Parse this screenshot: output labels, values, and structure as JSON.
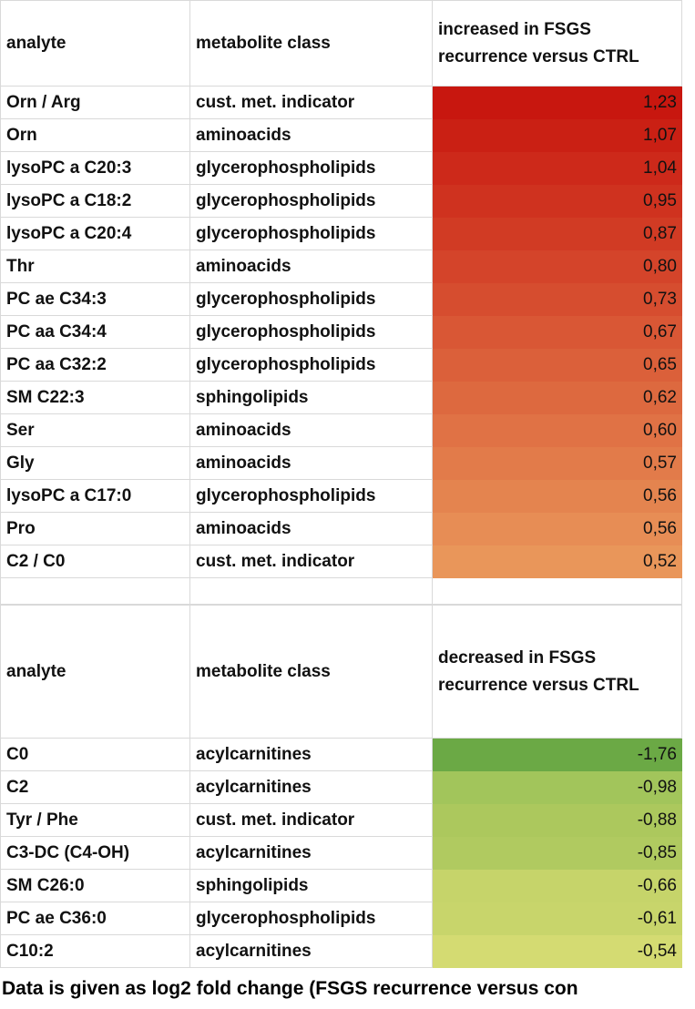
{
  "tables": [
    {
      "header": [
        "analyte",
        "metabolite class",
        "increased in  FSGS recurrence versus CTRL"
      ],
      "rows": [
        [
          "Orn / Arg",
          "cust. met. indicator",
          "1,23"
        ],
        [
          "Orn",
          "aminoacids",
          "1,07"
        ],
        [
          "lysoPC a C20:3",
          "glycerophospholipids",
          "1,04"
        ],
        [
          "lysoPC a C18:2",
          "glycerophospholipids",
          "0,95"
        ],
        [
          "lysoPC a C20:4",
          "glycerophospholipids",
          "0,87"
        ],
        [
          "Thr",
          "aminoacids",
          "0,80"
        ],
        [
          "PC ae C34:3",
          "glycerophospholipids",
          "0,73"
        ],
        [
          "PC aa C34:4",
          "glycerophospholipids",
          "0,67"
        ],
        [
          "PC aa C32:2",
          "glycerophospholipids",
          "0,65"
        ],
        [
          "SM C22:3",
          "sphingolipids",
          "0,62"
        ],
        [
          "Ser",
          "aminoacids",
          "0,60"
        ],
        [
          "Gly",
          "aminoacids",
          "0,57"
        ],
        [
          "lysoPC a C17:0",
          "glycerophospholipids",
          "0,56"
        ],
        [
          "Pro",
          "aminoacids",
          "0,56"
        ],
        [
          "C2 / C0",
          "cust. met. indicator",
          "0,52"
        ]
      ]
    },
    {
      "header": [
        "analyte",
        "metabolite class",
        "decreased in  FSGS recurrence versus CTRL"
      ],
      "rows": [
        [
          "C0",
          "acylcarnitines",
          "-1,76"
        ],
        [
          "C2",
          "acylcarnitines",
          "-0,98"
        ],
        [
          "Tyr / Phe",
          "cust. met. indicator",
          "-0,88"
        ],
        [
          "C3-DC (C4-OH)",
          "acylcarnitines",
          "-0,85"
        ],
        [
          "SM C26:0",
          "sphingolipids",
          "-0,66"
        ],
        [
          "PC ae C36:0",
          "glycerophospholipids",
          "-0,61"
        ],
        [
          "C10:2",
          "acylcarnitines",
          "-0,54"
        ]
      ]
    }
  ],
  "footer": "Data is given as log2 fold change (FSGS recurrence versus con"
}
